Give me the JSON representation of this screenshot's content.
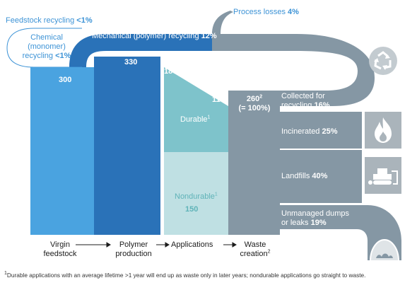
{
  "top": {
    "feedstock_recycling_text": "Feedstock recycling",
    "feedstock_recycling_value": "<1%",
    "process_losses_text": "Process losses",
    "process_losses_value": "4%",
    "mechanical_recycling_text": "Mechanical (polymer) recycling",
    "mechanical_recycling_value": "12%",
    "chemical_line1": "Chemical",
    "chemical_line2": "(monomer)",
    "chemical_line3": "recycling",
    "chemical_value": "<1%"
  },
  "bars": {
    "virgin_value": "300",
    "polymer_value": "330",
    "applications_value": "180",
    "durable_value": "110",
    "durable_label": "Durable",
    "durable_note": "1",
    "nondurable_label": "Nondurable",
    "nondurable_note": "1",
    "nondurable_value": "150",
    "waste_value": "260",
    "waste_note": "2",
    "waste_percent": "(= 100%)"
  },
  "outcomes": {
    "collected_line1": "Collected for",
    "collected_line2": "recycling",
    "collected_value": "16%",
    "incinerated_label": "Incinerated",
    "incinerated_value": "25%",
    "landfills_label": "Landfills",
    "landfills_value": "40%",
    "dumps_line1": "Unmanaged dumps",
    "dumps_line2": "or leaks",
    "dumps_value": "19%"
  },
  "stages": {
    "virgin_line1": "Virgin",
    "virgin_line2": "feedstock",
    "polymer_line1": "Polymer",
    "polymer_line2": "production",
    "applications": "Applications",
    "waste_line1": "Waste",
    "waste_line2": "creation",
    "waste_note": "2"
  },
  "footnote": {
    "marker": "1",
    "text": "Durable applications with an average lifetime >1 year will end up as waste only in later years; nondurable applications go straight to waste."
  },
  "colors": {
    "light_blue": "#4aa3e0",
    "dark_blue": "#2a72b8",
    "teal": "#7ec3cb",
    "pale_teal": "#bfe0e3",
    "gray": "#8597a4",
    "icon_gray": "#aab4bb"
  },
  "icons": [
    "recycle-icon",
    "flame-icon",
    "bulldozer-icon",
    "dump-icon",
    "arrow-icon"
  ]
}
